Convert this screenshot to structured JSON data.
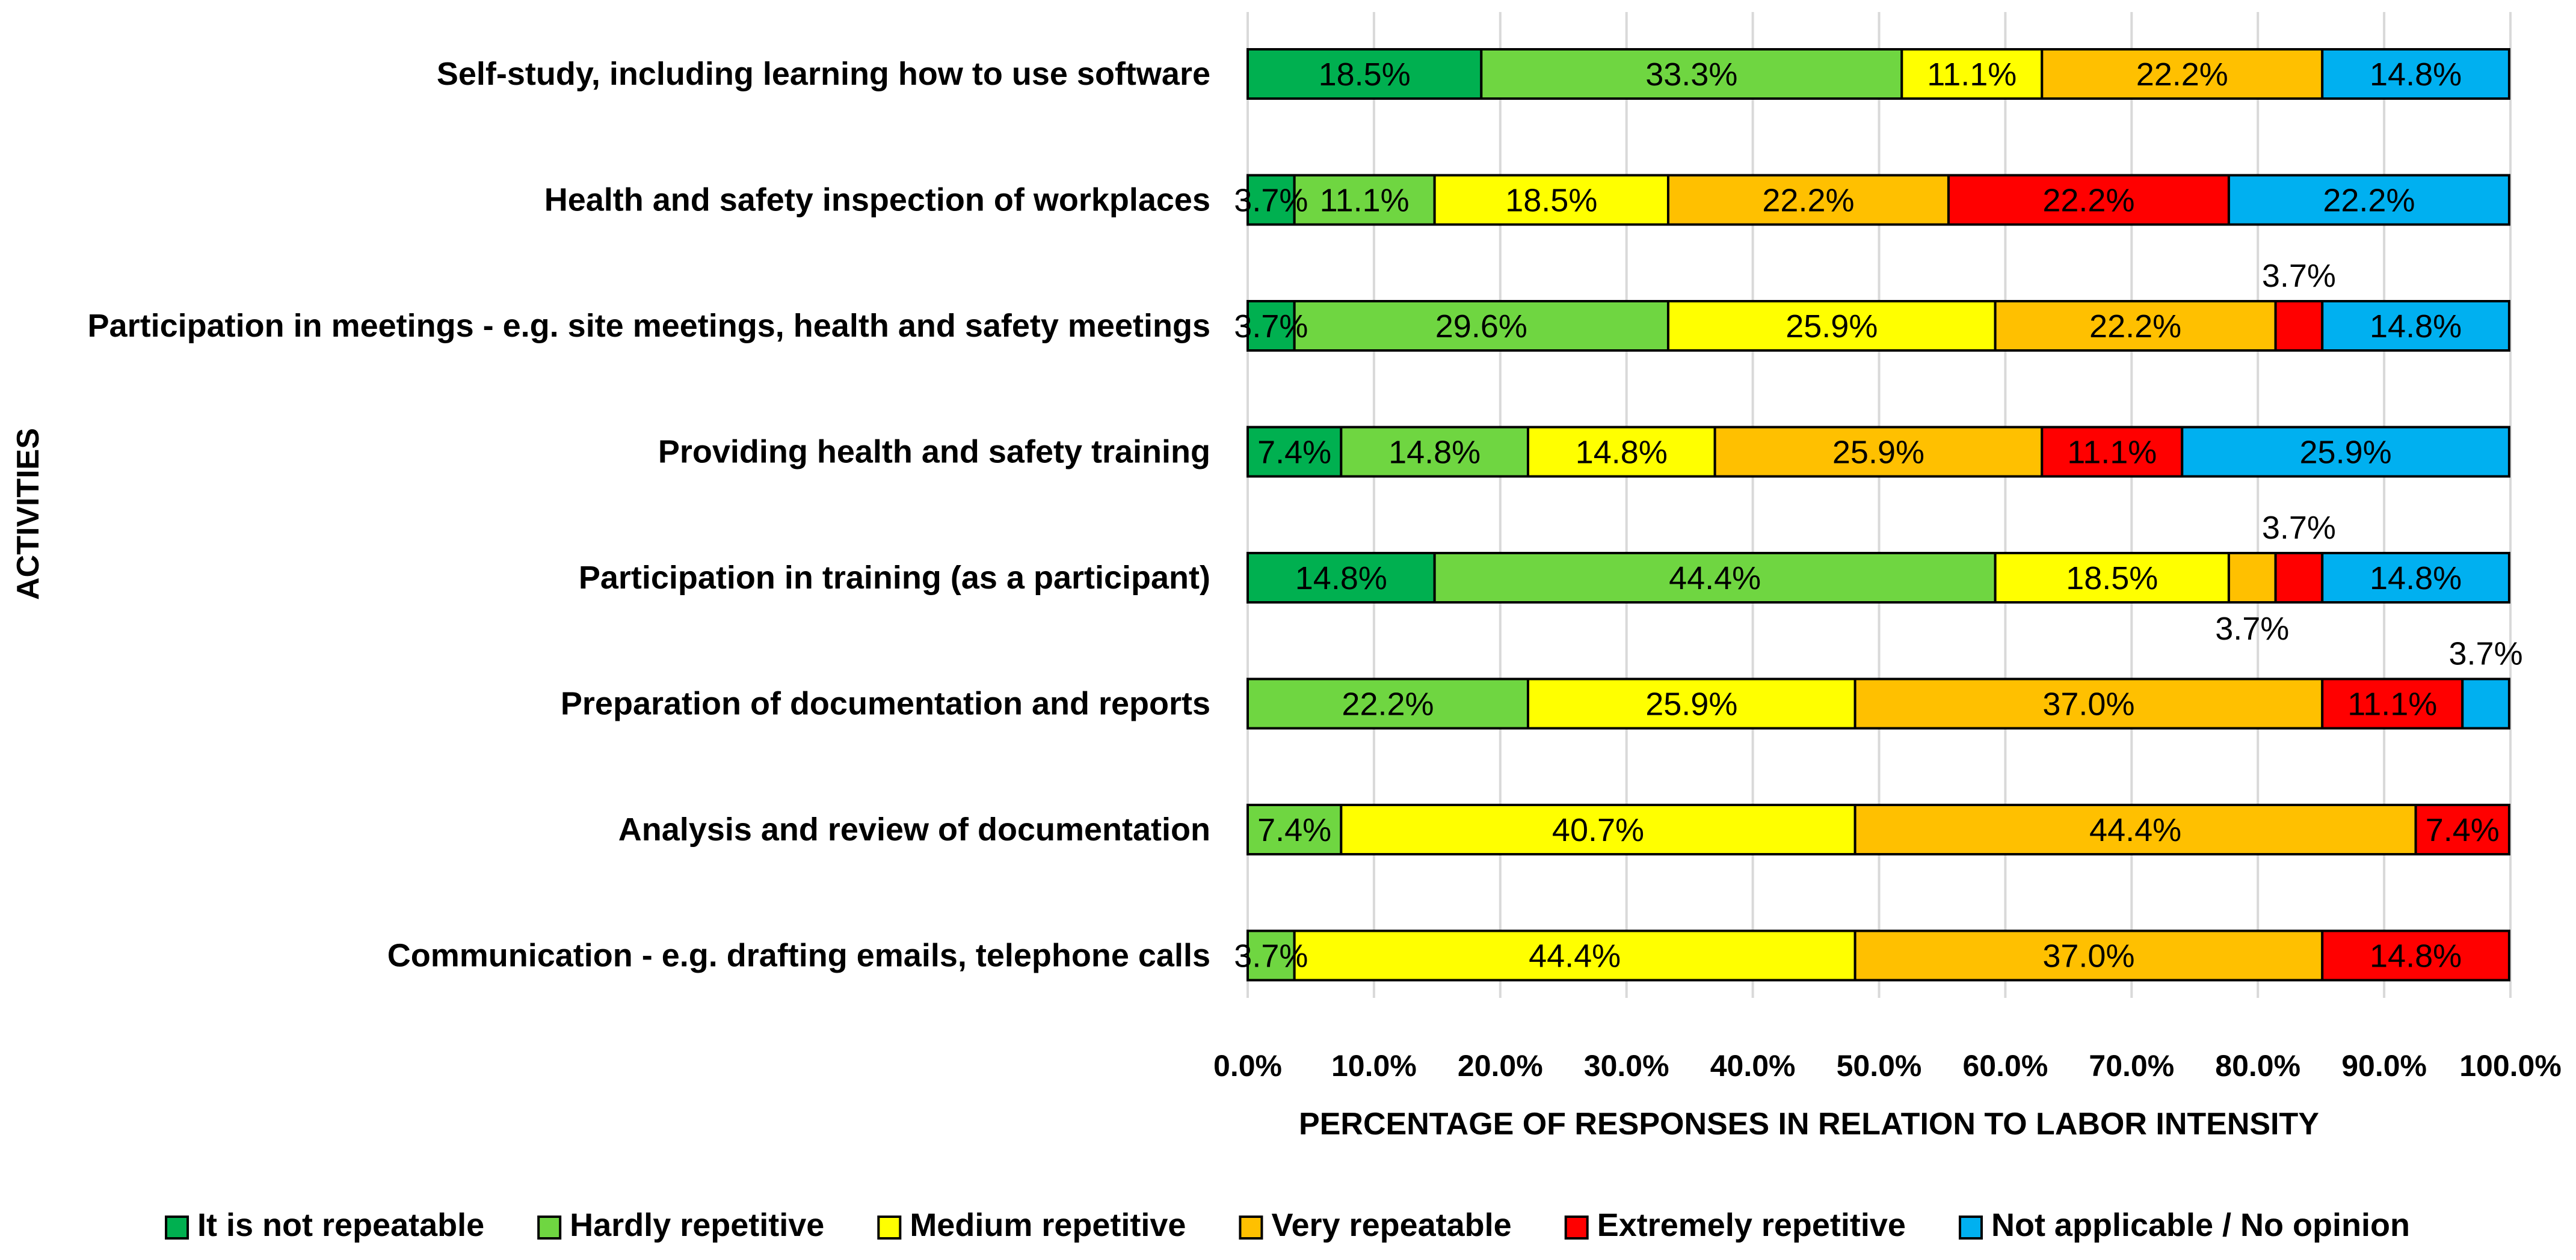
{
  "chart_data": {
    "type": "bar",
    "orientation": "horizontal",
    "stacked": true,
    "title": "",
    "xlabel": "PERCENTAGE OF RESPONSES IN RELATION TO LABOR INTENSITY",
    "ylabel": "ACTIVITIES",
    "xlim": [
      0,
      100
    ],
    "x_ticks": [
      "0.0%",
      "10.0%",
      "20.0%",
      "30.0%",
      "40.0%",
      "50.0%",
      "60.0%",
      "70.0%",
      "80.0%",
      "90.0%",
      "100.0%"
    ],
    "grid": "vertical",
    "legend_position": "bottom",
    "categories": [
      "Self-study, including learning how to use software",
      "Health and safety inspection of workplaces",
      "Participation in meetings - e.g. site meetings, health and safety meetings",
      "Providing health and safety training",
      "Participation in training (as a participant)",
      "Preparation of documentation and reports",
      "Analysis and review of documentation",
      "Communication - e.g. drafting emails, telephone calls"
    ],
    "series": [
      {
        "name": "It is not repeatable",
        "color": "#00B050",
        "values": [
          18.5,
          3.7,
          3.7,
          7.4,
          14.8,
          0,
          0,
          0
        ],
        "labels": [
          "18.5%",
          "3.7%",
          "3.7%",
          "7.4%",
          "14.8%",
          "",
          "",
          ""
        ]
      },
      {
        "name": "Hardly repetitive",
        "color": "#6FD641",
        "values": [
          33.3,
          11.1,
          29.6,
          14.8,
          44.4,
          22.2,
          7.4,
          3.7
        ],
        "labels": [
          "33.3%",
          "11.1%",
          "29.6%",
          "14.8%",
          "44.4%",
          "22.2%",
          "7.4%",
          "3.7%"
        ]
      },
      {
        "name": "Medium repetitive",
        "color": "#FFFF00",
        "values": [
          11.1,
          18.5,
          25.9,
          14.8,
          18.5,
          25.9,
          40.7,
          44.4
        ],
        "labels": [
          "11.1%",
          "18.5%",
          "25.9%",
          "14.8%",
          "18.5%",
          "25.9%",
          "40.7%",
          "44.4%"
        ]
      },
      {
        "name": "Very repeatable",
        "color": "#FFC000",
        "values": [
          22.2,
          22.2,
          22.2,
          25.9,
          3.7,
          37.0,
          44.4,
          37.0
        ],
        "labels": [
          "22.2%",
          "22.2%",
          "22.2%",
          "25.9%",
          "3.7%",
          "37.0%",
          "44.4%",
          "37.0%"
        ]
      },
      {
        "name": "Extremely repetitive",
        "color": "#FF0000",
        "values": [
          0,
          22.2,
          3.7,
          11.1,
          3.7,
          11.1,
          7.4,
          14.8
        ],
        "labels": [
          "",
          "22.2%",
          "3.7%",
          "11.1%",
          "3.7%",
          "11.1%",
          "7.4%",
          "14.8%"
        ]
      },
      {
        "name": "Not applicable / No opinion",
        "color": "#00B0F0",
        "values": [
          14.8,
          22.2,
          14.8,
          25.9,
          14.8,
          3.7,
          0,
          0
        ],
        "labels": [
          "14.8%",
          "22.2%",
          "14.8%",
          "25.9%",
          "14.8%",
          "3.7%",
          "",
          ""
        ]
      }
    ],
    "outside_labels": [
      {
        "category": 2,
        "series": 4,
        "text": "3.7%",
        "place": "above"
      },
      {
        "category": 4,
        "series": 4,
        "text": "3.7%",
        "place": "above"
      },
      {
        "category": 4,
        "series": 3,
        "text": "3.7%",
        "place": "below"
      },
      {
        "category": 5,
        "series": 5,
        "text": "3.7%",
        "place": "above"
      }
    ]
  }
}
